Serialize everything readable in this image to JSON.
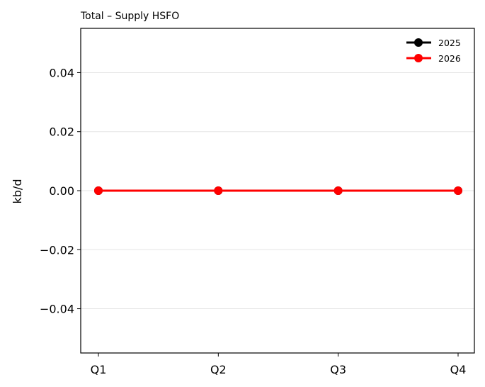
{
  "chart_data": {
    "type": "line",
    "title": "Total – Supply HSFO",
    "xlabel": "",
    "ylabel": "kb/d",
    "categories": [
      "Q1",
      "Q2",
      "Q3",
      "Q4"
    ],
    "ylim": [
      -0.055,
      0.055
    ],
    "yticks": [
      -0.04,
      -0.02,
      0.0,
      0.02,
      0.04
    ],
    "ytick_labels": [
      "−0.04",
      "−0.02",
      "0.00",
      "0.02",
      "0.04"
    ],
    "grid": "horizontal",
    "legend_position": "top-right",
    "series": [
      {
        "name": "2025",
        "color": "#000000",
        "values": [
          0,
          0,
          0,
          0
        ]
      },
      {
        "name": "2026",
        "color": "#ff0000",
        "values": [
          0,
          0,
          0,
          0
        ]
      }
    ]
  }
}
